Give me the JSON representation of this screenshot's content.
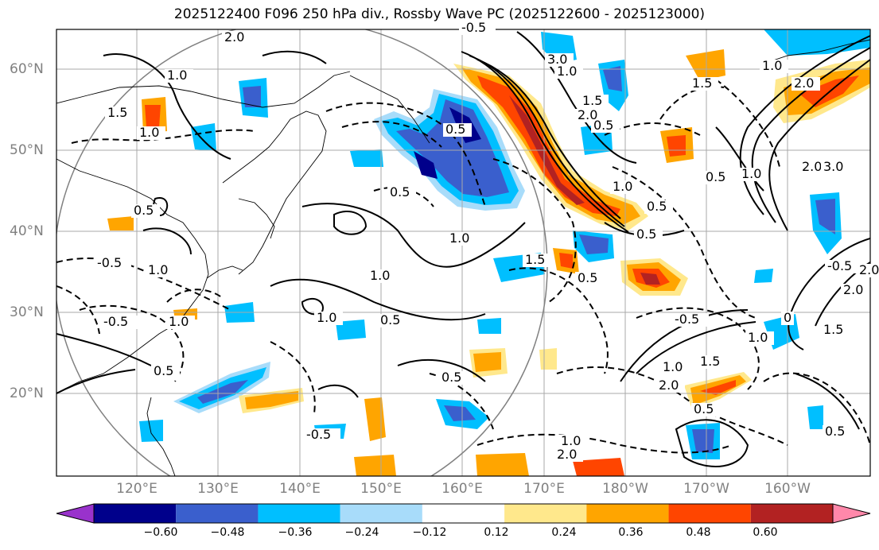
{
  "title": "2025122400 F096 250 hPa div., Rossby Wave PC (2025122600 - 2025123000)",
  "lat_labels": [
    "60°N",
    "50°N",
    "40°N",
    "30°N",
    "20°N"
  ],
  "lon_labels": [
    "120°E",
    "130°E",
    "140°E",
    "150°E",
    "160°E",
    "170°E",
    "180°W",
    "170°W",
    "160°W"
  ],
  "colorbar": {
    "ticks": [
      "−0.60",
      "−0.48",
      "−0.36",
      "−0.24",
      "−0.12",
      "0.12",
      "0.24",
      "0.36",
      "0.48",
      "0.60"
    ],
    "colors": [
      "#9932cc",
      "#00008b",
      "#3a5fcd",
      "#00bfff",
      "#a8dcfa",
      "#ffffff",
      "#ffe88c",
      "#ffa500",
      "#ff4500",
      "#b22222",
      "#ff88aa"
    ]
  },
  "contour_labels": [
    {
      "text": "2.0"
    },
    {
      "text": "1.0"
    },
    {
      "text": "1.5"
    },
    {
      "text": "1.0"
    },
    {
      "text": "0.5"
    },
    {
      "text": "1.0"
    },
    {
      "text": "0.5"
    },
    {
      "text": "-0.5"
    },
    {
      "text": "1.0"
    },
    {
      "text": "-0.5"
    },
    {
      "text": "1.0"
    },
    {
      "text": "1.0"
    },
    {
      "text": "0.5"
    },
    {
      "text": "0.5"
    },
    {
      "text": "-0.5"
    },
    {
      "text": "0.5"
    },
    {
      "text": "1.5"
    },
    {
      "text": "0.5"
    },
    {
      "text": "1.0"
    },
    {
      "text": "0.5"
    },
    {
      "text": "0.5"
    },
    {
      "text": "-0.5"
    },
    {
      "text": "1.0"
    },
    {
      "text": "1.5"
    },
    {
      "text": "2.0"
    },
    {
      "text": "-0.5"
    },
    {
      "text": "-0.5"
    },
    {
      "text": "2.0"
    },
    {
      "text": "1.0"
    },
    {
      "text": "0.5"
    },
    {
      "text": "3.0"
    },
    {
      "text": "2.0"
    },
    {
      "text": "1.0"
    },
    {
      "text": "3.0"
    },
    {
      "text": "2.0"
    },
    {
      "text": "2.0"
    },
    {
      "text": "0.5"
    },
    {
      "text": "1.5"
    },
    {
      "text": "1.0"
    },
    {
      "text": "0.5"
    },
    {
      "text": "1.0"
    },
    {
      "text": "2.0"
    },
    {
      "text": "1.5"
    },
    {
      "text": "1.0"
    },
    {
      "text": "0"
    },
    {
      "text": "1.0"
    },
    {
      "text": "0.5"
    },
    {
      "text": "1.5"
    },
    {
      "text": "2.0"
    },
    {
      "text": "0.5"
    }
  ]
}
